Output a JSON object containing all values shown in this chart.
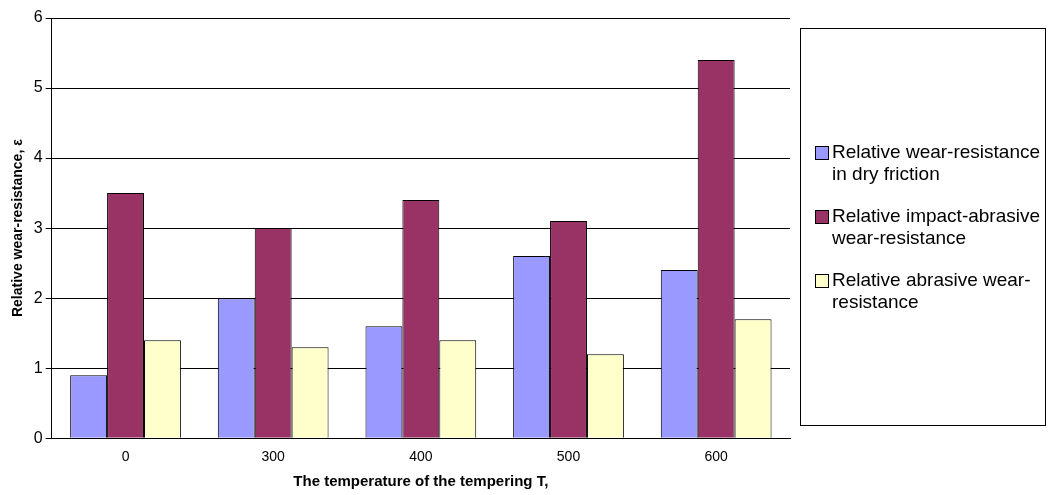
{
  "chart_data": {
    "type": "bar",
    "xlabel": "The temperature of the tempering T,",
    "ylabel": "Relative wear-resistance, ε",
    "categories": [
      "0",
      "300",
      "400",
      "500",
      "600"
    ],
    "series": [
      {
        "name": "Relative wear-resistance in dry friction",
        "color": "#9999ff",
        "values": [
          0.9,
          2.0,
          1.6,
          2.6,
          2.4
        ]
      },
      {
        "name": "Relative impact-abrasive wear-resistance",
        "color": "#993366",
        "values": [
          3.5,
          3.0,
          3.4,
          3.1,
          5.4
        ]
      },
      {
        "name": "Relative abrasive wear-resistance",
        "color": "#ffffcc",
        "values": [
          1.4,
          1.3,
          1.4,
          1.2,
          1.7
        ]
      }
    ],
    "ylim": [
      0,
      6
    ],
    "yticks": [
      0,
      1,
      2,
      3,
      4,
      5,
      6
    ],
    "grid": "y",
    "legend": "right"
  }
}
